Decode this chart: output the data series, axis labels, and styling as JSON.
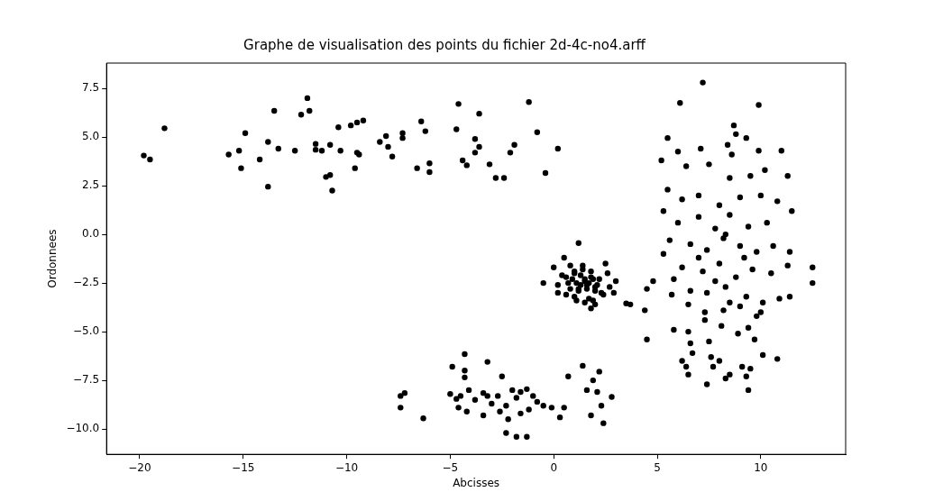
{
  "chart_data": {
    "type": "scatter",
    "title": "Graphe de visualisation des points du fichier 2d-4c-no4.arff",
    "xlabel": "Abcisses",
    "ylabel": "Ordonnees",
    "marker": "circle",
    "grid": false,
    "legend": false,
    "xlim": [
      -21.6,
      14.1
    ],
    "ylim": [
      -11.3,
      8.8
    ],
    "xticks": [
      {
        "value": -20,
        "label": "−20"
      },
      {
        "value": -15,
        "label": "−15"
      },
      {
        "value": -10,
        "label": "−10"
      },
      {
        "value": -5,
        "label": "−5"
      },
      0,
      5,
      10
    ],
    "yticks": [
      {
        "value": -10,
        "label": "−10.0"
      },
      {
        "value": -7.5,
        "label": "−7.5"
      },
      {
        "value": -5,
        "label": "−5.0"
      },
      {
        "value": -2.5,
        "label": "−2.5"
      },
      {
        "value": 0,
        "label": "0.0"
      },
      2.5,
      {
        "value": 5,
        "label": "5.0"
      },
      7.5
    ],
    "series": [
      {
        "color": "#000000",
        "x": [
          -19.8,
          -19.5,
          -18.8,
          -15.7,
          -15.2,
          -15.1,
          -14.9,
          -14.2,
          -13.8,
          -13.8,
          -13.5,
          -13.3,
          -12.5,
          -12.2,
          -11.9,
          -11.8,
          -11.5,
          -11.5,
          -11.2,
          -11.0,
          -10.8,
          -10.8,
          -10.7,
          -10.4,
          -10.3,
          -9.8,
          -9.5,
          -9.5,
          -9.4,
          -9.6,
          -9.2,
          -8.4,
          -8.1,
          -8.0,
          -7.8,
          -7.3,
          -7.3,
          -6.4,
          -6.2,
          -6.6,
          -6.0,
          -6.0,
          -4.6,
          -4.7,
          -4.4,
          -4.2,
          -3.8,
          -3.6,
          -3.6,
          -3.8,
          -3.1,
          -2.8,
          -2.4,
          -2.1,
          -1.9,
          -1.2,
          -0.8,
          -0.4,
          0.2,
          -4.9,
          -4.3,
          -4.3,
          -4.3,
          -3.2,
          -2.5,
          -7.4,
          -7.4,
          -7.2,
          -6.3,
          -5.0,
          -4.7,
          -4.5,
          -4.1,
          -4.6,
          -4.2,
          -3.8,
          -3.4,
          -3.2,
          -3.0,
          -2.7,
          -2.6,
          -2.3,
          -2.0,
          -1.8,
          -1.6,
          -1.3,
          -1.0,
          -0.8,
          -0.5,
          -2.2,
          -2.3,
          -1.8,
          -1.3,
          -1.6,
          -1.2,
          0.3,
          0.5,
          0.7,
          1.4,
          1.6,
          1.8,
          1.9,
          2.2,
          2.1,
          2.3,
          2.4,
          2.8,
          -3.4,
          -0.1,
          0.9,
          1.1,
          1.3,
          1.5,
          1.7,
          1.9,
          2.1,
          0.8,
          1.2,
          1.6,
          2.0,
          2.3,
          1.0,
          1.4,
          1.8,
          0.6,
          2.7,
          1.1,
          1.5,
          1.9,
          -0.5,
          1.2,
          0.5,
          0.8,
          2.5,
          3.0,
          2.9,
          3.7,
          3.5,
          2.0,
          1.8,
          0.0,
          0.2,
          0.2,
          0.4,
          0.6,
          1.0,
          1.2,
          1.5,
          1.6,
          1.8,
          2.0,
          2.2,
          2.4,
          1.4,
          1.0,
          1.7,
          2.6,
          0.7,
          1.3,
          7.2,
          6.1,
          9.9,
          8.7,
          8.8,
          5.5,
          6.0,
          8.6,
          7.1,
          8.4,
          9.3,
          9.9,
          11.0,
          5.2,
          6.4,
          7.5,
          8.5,
          9.5,
          10.2,
          11.3,
          5.5,
          6.2,
          7.0,
          8.0,
          9.0,
          10.0,
          10.8,
          5.3,
          6.0,
          7.0,
          7.8,
          8.5,
          9.4,
          10.3,
          11.5,
          5.6,
          6.6,
          7.4,
          8.2,
          9.0,
          9.8,
          10.6,
          11.4,
          5.3,
          6.2,
          7.2,
          8.0,
          8.8,
          9.6,
          10.5,
          11.3,
          12.5,
          12.5,
          4.5,
          4.8,
          5.8,
          6.6,
          7.4,
          8.3,
          9.3,
          10.1,
          10.9,
          11.4,
          4.4,
          5.7,
          6.5,
          7.3,
          8.2,
          9.0,
          9.8,
          4.5,
          5.8,
          6.5,
          7.3,
          8.1,
          9.4,
          10.0,
          6.6,
          7.5,
          8.9,
          9.7,
          6.7,
          8.0,
          9.1,
          10.1,
          10.8,
          6.4,
          7.6,
          6.5,
          7.7,
          8.5,
          9.5,
          7.4,
          8.3,
          9.3,
          9.4,
          6.2,
          8.3,
          7.0,
          9.2,
          8.5,
          7.8
        ],
        "values": [
          4.05,
          3.85,
          5.45,
          4.1,
          4.3,
          3.4,
          5.2,
          3.85,
          4.75,
          2.45,
          6.35,
          4.4,
          4.3,
          6.15,
          7.0,
          6.35,
          4.65,
          4.35,
          4.3,
          2.95,
          3.05,
          4.6,
          2.25,
          5.5,
          4.3,
          5.6,
          5.75,
          4.2,
          4.1,
          3.4,
          5.85,
          4.75,
          5.05,
          4.5,
          4.0,
          4.95,
          5.2,
          5.8,
          5.3,
          3.4,
          3.65,
          3.2,
          6.7,
          5.4,
          3.8,
          3.55,
          4.9,
          4.5,
          6.2,
          4.2,
          3.6,
          2.9,
          2.9,
          4.2,
          4.6,
          6.8,
          5.25,
          3.15,
          4.4,
          -6.8,
          -6.15,
          -7.0,
          -7.35,
          -6.55,
          -7.3,
          -8.9,
          -8.3,
          -8.15,
          -9.45,
          -8.2,
          -8.45,
          -8.3,
          -8.0,
          -8.9,
          -9.1,
          -8.5,
          -8.15,
          -8.3,
          -8.7,
          -8.3,
          -9.1,
          -8.8,
          -8.0,
          -8.4,
          -8.1,
          -7.95,
          -8.3,
          -8.6,
          -8.8,
          -9.5,
          -10.2,
          -10.4,
          -10.4,
          -9.2,
          -9.0,
          -9.4,
          -8.9,
          -7.3,
          -6.75,
          -8.0,
          -9.3,
          -7.5,
          -7.05,
          -8.1,
          -8.8,
          -9.7,
          -8.35,
          -9.3,
          -8.9,
          -2.3,
          -2.5,
          -2.6,
          -2.4,
          -2.5,
          -2.3,
          -2.6,
          -2.8,
          -2.9,
          -2.8,
          -2.9,
          -3.0,
          -1.9,
          -1.8,
          -1.9,
          -2.2,
          -2.7,
          -3.4,
          -3.5,
          -3.4,
          -2.5,
          -0.45,
          -1.2,
          -1.6,
          -1.5,
          -2.4,
          -3.0,
          -3.6,
          -3.55,
          -3.6,
          -3.8,
          -1.7,
          -2.6,
          -3.0,
          -2.1,
          -3.1,
          -2.0,
          -2.8,
          -2.3,
          -2.6,
          -2.2,
          -2.7,
          -2.3,
          -3.1,
          -1.6,
          -3.2,
          -3.3,
          -2.0,
          -2.5,
          -2.1,
          7.8,
          6.75,
          6.65,
          5.6,
          5.15,
          4.95,
          4.25,
          4.1,
          4.4,
          4.6,
          4.95,
          4.3,
          4.3,
          3.8,
          3.5,
          3.6,
          2.9,
          3.0,
          3.3,
          3.0,
          2.3,
          1.8,
          2.0,
          1.5,
          1.9,
          2.0,
          1.7,
          1.2,
          0.6,
          0.9,
          0.3,
          1.0,
          0.4,
          0.6,
          1.2,
          -0.3,
          -0.5,
          -0.8,
          -0.2,
          -0.6,
          -0.9,
          -0.6,
          -0.9,
          -1.0,
          -1.7,
          -1.9,
          -1.5,
          -2.2,
          -1.8,
          -2.0,
          -1.6,
          -1.7,
          -2.5,
          -2.8,
          -2.4,
          -2.3,
          -2.9,
          -3.0,
          -2.7,
          -3.2,
          -3.5,
          -3.3,
          -3.2,
          -3.9,
          -3.1,
          -3.6,
          -4.0,
          -3.9,
          -3.7,
          -4.2,
          -5.4,
          -4.9,
          -5.0,
          -4.4,
          -4.7,
          -4.8,
          -4.0,
          -5.6,
          -5.5,
          -5.1,
          -5.4,
          -6.1,
          -6.5,
          -6.8,
          -6.2,
          -6.4,
          -6.8,
          -6.3,
          -7.2,
          -6.8,
          -7.2,
          -6.9,
          -7.7,
          -7.4,
          -7.3,
          -8.0,
          -6.5,
          0.0,
          -1.2,
          -1.2,
          -3.5,
          -2.4
        ]
      }
    ]
  }
}
